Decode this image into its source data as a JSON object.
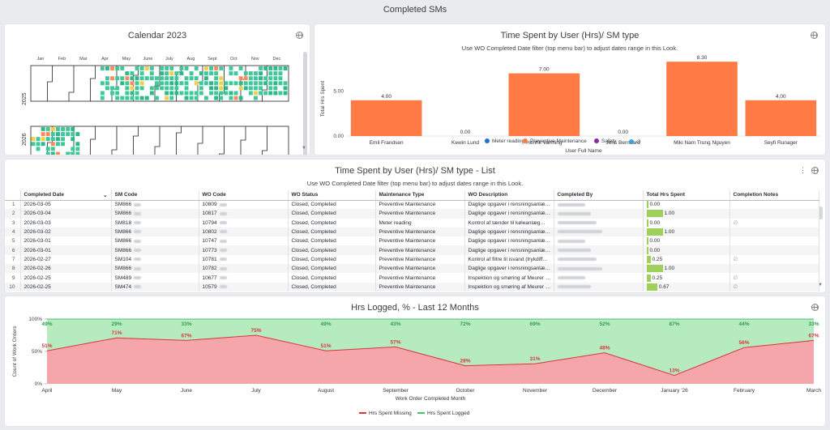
{
  "page": {
    "title": "Completed SMs"
  },
  "calendar": {
    "title": "Calendar 2023",
    "months": [
      "Jan",
      "Feb",
      "Mar",
      "Apr",
      "May",
      "June",
      "July",
      "Aug",
      "Sept",
      "Oct",
      "Nov",
      "Dec"
    ],
    "years": [
      "2025",
      "2026"
    ]
  },
  "user_chart": {
    "title": "Time Spent by User (Hrs)/ SM type",
    "subtitle": "Use WO Completed Date filter (top menu bar) to adjust dates range in this Look.",
    "chart_data": {
      "type": "bar",
      "categories": [
        "Emil Frandsen",
        "Kewin Lund",
        "Henrik Varming",
        "Jens Bernhard",
        "Miki Nam Trung Nguyen",
        "Seyfi Runager"
      ],
      "values": [
        4.0,
        0.0,
        7.0,
        0.0,
        8.3,
        4.0
      ],
      "value_labels": [
        "4.00",
        "0.00",
        "7.00",
        "0.00",
        "8.30",
        "4.00"
      ],
      "xlabel": "User Full Name",
      "ylabel": "Total Hrs Spent",
      "yticks": [
        "0.00",
        "5.00"
      ],
      "ylim": [
        0,
        8.5
      ],
      "series": [
        {
          "name": "Meter reading",
          "color": "#1f6fd1"
        },
        {
          "name": "Preventive Maintenance",
          "color": "#ff7a45"
        },
        {
          "name": "Safety",
          "color": "#8e24aa"
        },
        {
          "name": "∅",
          "color": "#3aa3e3"
        }
      ]
    }
  },
  "list": {
    "title": "Time Spent by User (Hrs)/ SM type - List",
    "subtitle": "Use WO Completed Date filter (top menu bar) to adjust dates range in this Look.",
    "headers": [
      "Completed Date",
      "SM Code",
      "WO Code",
      "WO Status",
      "Maintenance Type",
      "WO Description",
      "Completed By",
      "Total Hrs Spent",
      "Completion Notes"
    ],
    "rows": [
      {
        "n": "1",
        "date": "2026-03-05",
        "sm": "SM866",
        "wo": "10809",
        "status": "Closed, Completed",
        "type": "Preventive Maintenance",
        "desc": "Daglige opgaver i rensningsanlæ…",
        "hrs": 0.0,
        "hrs_label": "0.00",
        "note": ""
      },
      {
        "n": "2",
        "date": "2026-03-04",
        "sm": "SM866",
        "wo": "10817",
        "status": "Closed, Completed",
        "type": "Preventive Maintenance",
        "desc": "Daglige opgaver i rensningsanlæ…",
        "hrs": 1.0,
        "hrs_label": "1.00",
        "note": ""
      },
      {
        "n": "3",
        "date": "2026-03-03",
        "sm": "SM818",
        "wo": "10794",
        "status": "Closed, Completed",
        "type": "Meter reading",
        "desc": "Kontrol af tænder til køleanlæg…",
        "hrs": 0.0,
        "hrs_label": "0.00",
        "note": "∅"
      },
      {
        "n": "4",
        "date": "2026-03-02",
        "sm": "SM866",
        "wo": "10802",
        "status": "Closed, Completed",
        "type": "Preventive Maintenance",
        "desc": "Daglige opgaver i rensningsanlæ…",
        "hrs": 1.0,
        "hrs_label": "1.00",
        "note": ""
      },
      {
        "n": "5",
        "date": "2026-03-01",
        "sm": "SM866",
        "wo": "10747",
        "status": "Closed, Completed",
        "type": "Preventive Maintenance",
        "desc": "Daglige opgaver i rensningsanlæ…",
        "hrs": 0.0,
        "hrs_label": "0.00",
        "note": ""
      },
      {
        "n": "6",
        "date": "2026-03-01",
        "sm": "SM866",
        "wo": "10773",
        "status": "Closed, Completed",
        "type": "Preventive Maintenance",
        "desc": "Daglige opgaver i rensningsanlæ…",
        "hrs": 0.0,
        "hrs_label": "0.00",
        "note": ""
      },
      {
        "n": "7",
        "date": "2026-02-27",
        "sm": "SM104",
        "wo": "10781",
        "status": "Closed, Completed",
        "type": "Preventive Maintenance",
        "desc": "Kontrol af filtre til isvand (trykdiff…",
        "hrs": 0.25,
        "hrs_label": "0.25",
        "note": "∅"
      },
      {
        "n": "8",
        "date": "2026-02-26",
        "sm": "SM866",
        "wo": "10782",
        "status": "Closed, Completed",
        "type": "Preventive Maintenance",
        "desc": "Daglige opgaver i rensningsanlæ…",
        "hrs": 1.0,
        "hrs_label": "1.00",
        "note": ""
      },
      {
        "n": "9",
        "date": "2026-02-25",
        "sm": "SM489",
        "wo": "10677",
        "status": "Closed, Completed",
        "type": "Preventive Maintenance",
        "desc": "Inspektion og smøring af Meurer …",
        "hrs": 0.25,
        "hrs_label": "0.25",
        "note": "∅"
      },
      {
        "n": "10",
        "date": "2026-02-25",
        "sm": "SM474",
        "wo": "10579",
        "status": "Closed, Completed",
        "type": "Preventive Maintenance",
        "desc": "Inspektion og smøring af Meurer …",
        "hrs": 0.67,
        "hrs_label": "0.67",
        "note": "∅"
      }
    ]
  },
  "hrs_chart": {
    "title": "Hrs Logged, % - Last 12 Months",
    "chart_data": {
      "type": "area",
      "categories": [
        "April",
        "May",
        "June",
        "July",
        "August",
        "September",
        "October",
        "November",
        "December",
        "January '26",
        "February",
        "March"
      ],
      "series": [
        {
          "name": "Hrs Spent Missing",
          "color": "#d9363e",
          "values": [
            51,
            71,
            67,
            75,
            51,
            57,
            28,
            31,
            48,
            13,
            56,
            67
          ],
          "labels": [
            "51%",
            "71%",
            "67%",
            "75%",
            "51%",
            "57%",
            "28%",
            "31%",
            "48%",
            "13%",
            "56%",
            "67%"
          ]
        },
        {
          "name": "Hrs Spent Logged",
          "color": "#4cc26a",
          "values": [
            49,
            29,
            33,
            25,
            49,
            43,
            72,
            69,
            52,
            87,
            44,
            33
          ],
          "labels": [
            "49%",
            "29%",
            "33%",
            "",
            "49%",
            "43%",
            "72%",
            "69%",
            "52%",
            "87%",
            "44%",
            "33%"
          ]
        }
      ],
      "xlabel": "Work Order Completed Month",
      "ylabel": "Count of Work Orders",
      "yticks": [
        "0%",
        "50%",
        "100%"
      ],
      "ylim": [
        0,
        100
      ]
    }
  }
}
